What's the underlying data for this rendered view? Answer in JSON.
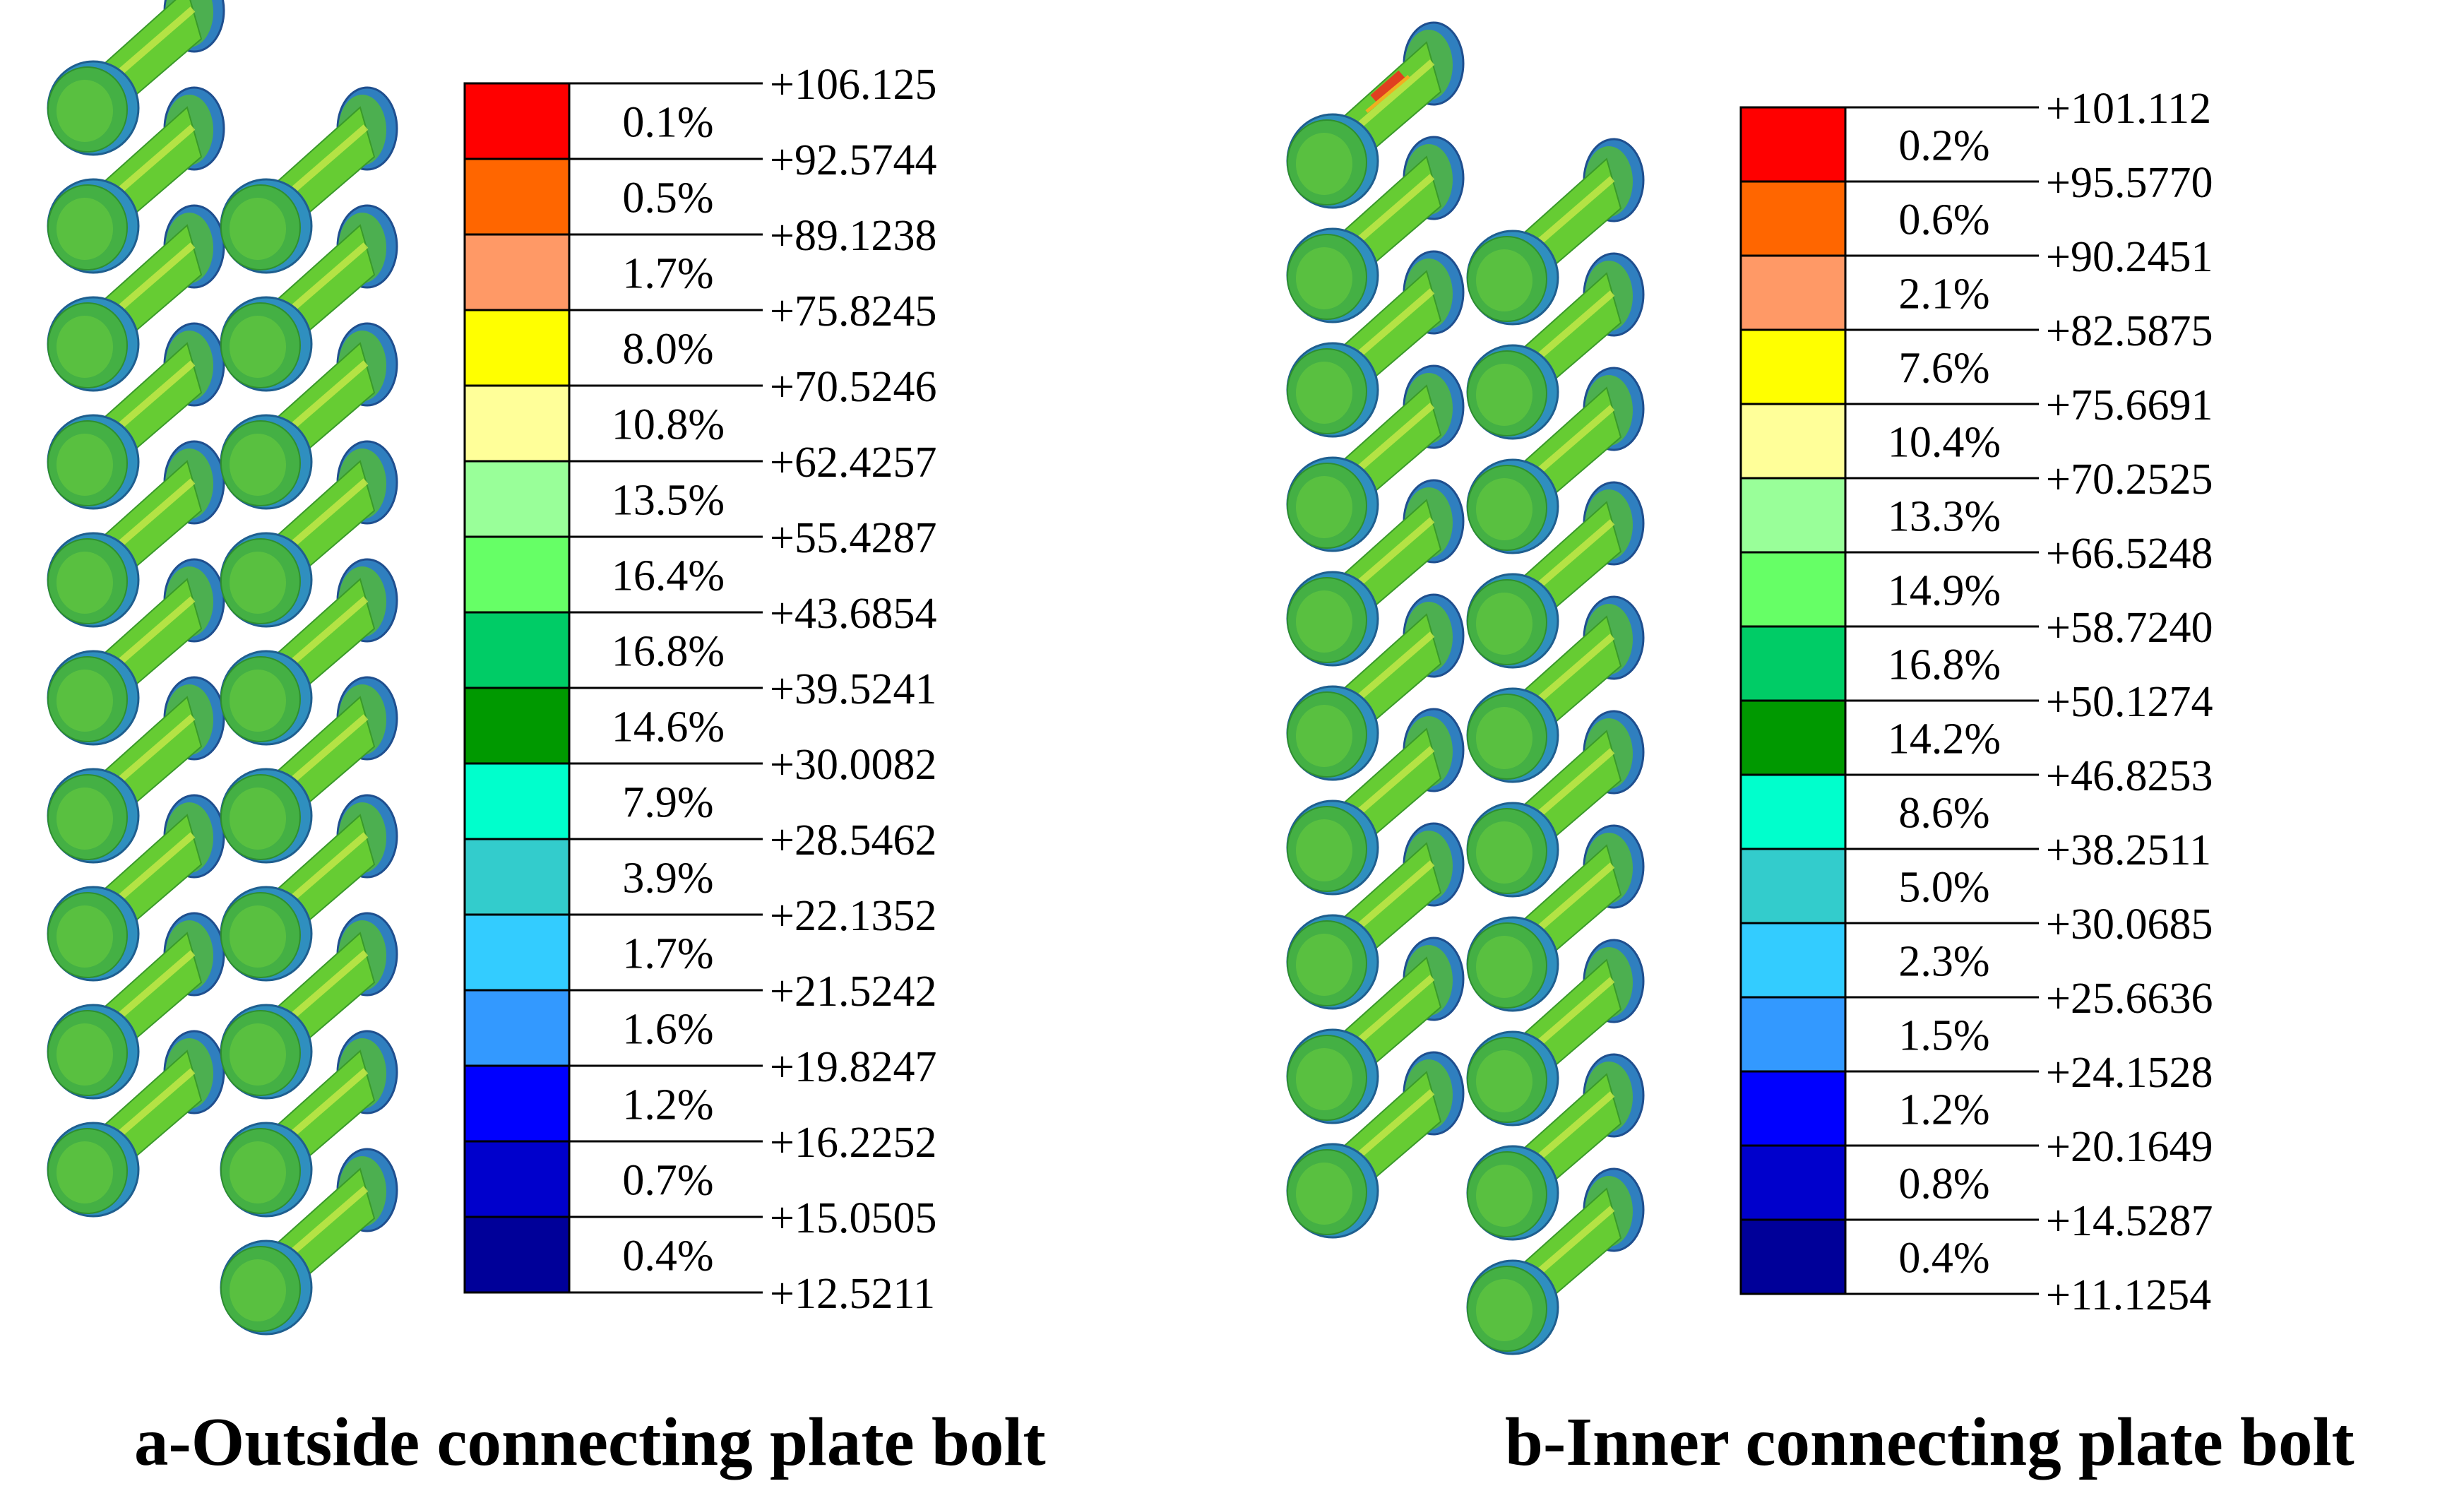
{
  "panels": [
    {
      "id": "a",
      "caption": "a-Outside connecting plate bolt",
      "bolt_columns": [
        10,
        10
      ],
      "colors": [
        "#ff0000",
        "#ff6600",
        "#ff9966",
        "#ffff00",
        "#ffff99",
        "#99ff99",
        "#66ff66",
        "#00cc66",
        "#009900",
        "#00ffcc",
        "#33cccc",
        "#33ccff",
        "#3399ff",
        "#0000ff",
        "#0000cc",
        "#000099"
      ],
      "percentages": [
        "0.1%",
        "0.5%",
        "1.7%",
        "8.0%",
        "10.8%",
        "13.5%",
        "16.4%",
        "16.8%",
        "14.6%",
        "7.9%",
        "3.9%",
        "1.7%",
        "1.6%",
        "1.2%",
        "0.7%",
        "0.4%"
      ],
      "values": [
        "+106.125",
        "+92.5744",
        "+89.1238",
        "+75.8245",
        "+70.5246",
        "+62.4257",
        "+55.4287",
        "+43.6854",
        "+39.5241",
        "+30.0082",
        "+28.5462",
        "+22.1352",
        "+21.5242",
        "+19.8247",
        "+16.2252",
        "+15.0505",
        "+12.5211"
      ]
    },
    {
      "id": "b",
      "caption": "b-Inner connecting plate bolt",
      "bolt_columns": [
        10,
        10
      ],
      "colors": [
        "#ff0000",
        "#ff6600",
        "#ff9966",
        "#ffff00",
        "#ffff99",
        "#99ff99",
        "#66ff66",
        "#00cc66",
        "#009900",
        "#00ffcc",
        "#33cccc",
        "#33ccff",
        "#3399ff",
        "#0000ff",
        "#0000cc",
        "#000099"
      ],
      "percentages": [
        "0.2%",
        "0.6%",
        "2.1%",
        "7.6%",
        "10.4%",
        "13.3%",
        "14.9%",
        "16.8%",
        "14.2%",
        "8.6%",
        "5.0%",
        "2.3%",
        "1.5%",
        "1.2%",
        "0.8%",
        "0.4%"
      ],
      "values": [
        "+101.112",
        "+95.5770",
        "+90.2451",
        "+82.5875",
        "+75.6691",
        "+70.2525",
        "+66.5248",
        "+58.7240",
        "+50.1274",
        "+46.8253",
        "+38.2511",
        "+30.0685",
        "+25.6636",
        "+24.1528",
        "+20.1649",
        "+14.5287",
        "+11.1254"
      ]
    }
  ]
}
